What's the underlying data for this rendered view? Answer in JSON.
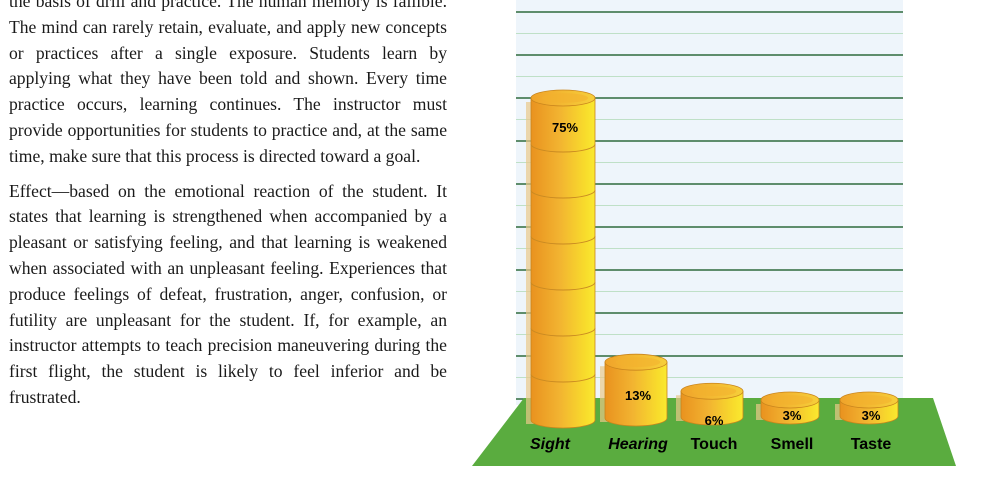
{
  "document": {
    "paragraphs": [
      "the basis of drill and practice. The human memory is fallible. The mind can rarely retain, evaluate, and apply new concepts or practices after a single exposure. Students learn by applying what they have been told and shown. Every time practice occurs, learning continues. The instructor must provide opportunities for students to practice and, at the same time, make sure that this process is directed toward a goal.",
      "Effect—based on the emotional reaction of the student. It states that learning is strengthened when accompanied by a pleasant or satisfying feeling, and that learning is weakened when associated with an unpleasant feeling. Experiences that produce feelings of defeat, frustration, anger, confusion, or futility are unpleasant for the student. If, for example, an instructor attempts to teach precision maneuvering during the first flight, the student is likely to feel inferior and be frustrated."
    ]
  },
  "chart_data": {
    "type": "bar",
    "categories": [
      "Sight",
      "Hearing",
      "Touch",
      "Smell",
      "Taste"
    ],
    "values": [
      75,
      13,
      6,
      3,
      3
    ],
    "value_labels": [
      "75%",
      "13%",
      "6%",
      "3%",
      "3%"
    ],
    "ylim": [
      0,
      75
    ],
    "grid": true,
    "colors": {
      "bar_light": "#f8e62a",
      "bar_mid": "#f2b431",
      "bar_dark": "#e38f1f",
      "bar_shadow": "#e9c98a",
      "floor": "#5aac3f",
      "wall": "#eef5fb",
      "grid_major": "#2f6b3c",
      "grid_minor": "#bfe0c7"
    }
  }
}
